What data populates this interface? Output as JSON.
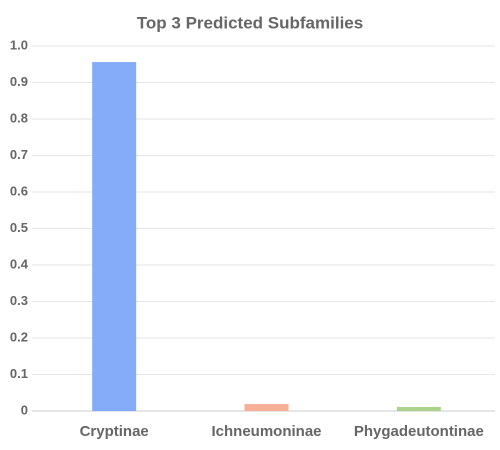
{
  "chart_data": {
    "type": "bar",
    "title": "Top 3 Predicted Subfamilies",
    "categories": [
      "Cryptinae",
      "Ichneumoninae",
      "Phygadeutontinae"
    ],
    "values": [
      0.956,
      0.019,
      0.011
    ],
    "colors": [
      "#7ea8f8",
      "#f7ab91",
      "#a6d185"
    ],
    "ylim": [
      0,
      1
    ],
    "yticks": [
      0,
      0.1,
      0.2,
      0.3,
      0.4,
      0.5,
      0.6,
      0.7,
      0.8,
      0.9,
      {
        "value": 1,
        "label": "1.0"
      }
    ],
    "grid": true
  }
}
